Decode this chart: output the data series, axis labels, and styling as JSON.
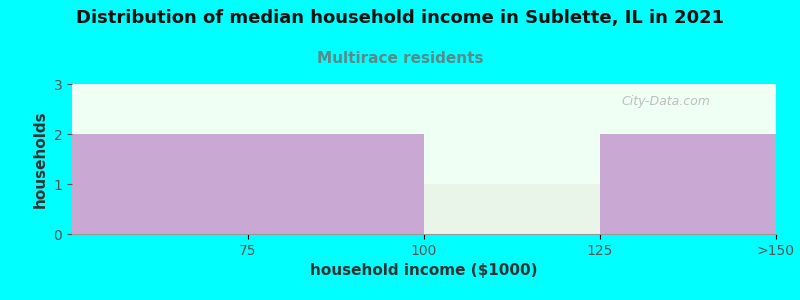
{
  "title": "Distribution of median household income in Sublette, IL in 2021",
  "subtitle": "Multirace residents",
  "subtitle_color": "#5a8a8a",
  "xlabel": "household income ($1000)",
  "ylabel": "households",
  "background_color": "#00ffff",
  "plot_bg_color": "#f0fff4",
  "bar_labels": [
    "75",
    "100",
    "125",
    ">150"
  ],
  "bar_values": [
    2,
    2,
    1,
    2
  ],
  "bar_colors": [
    "#c9a8d4",
    "#c9a8d4",
    "#e8f5e8",
    "#c9a8d4"
  ],
  "ylim": [
    0,
    3
  ],
  "yticks": [
    0,
    1,
    2,
    3
  ],
  "watermark": "City-Data.com",
  "title_fontsize": 13,
  "subtitle_fontsize": 11,
  "axis_label_fontsize": 11,
  "tick_label_color": "#555555",
  "title_color": "#111111"
}
